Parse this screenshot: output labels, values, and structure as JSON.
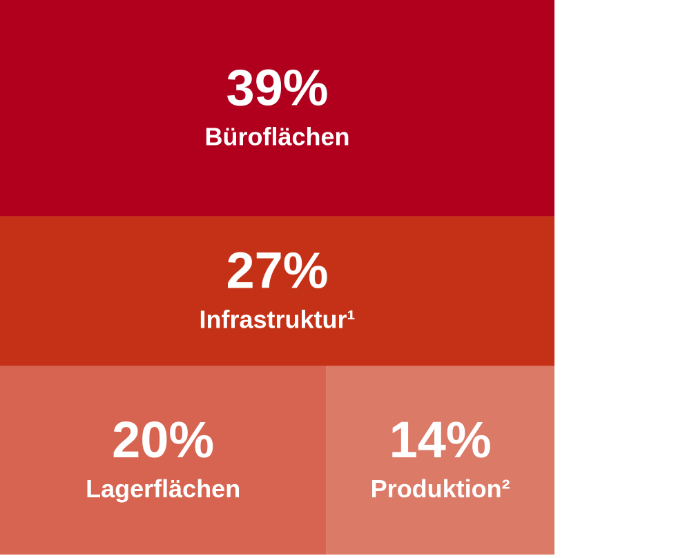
{
  "chart_data": {
    "type": "treemap",
    "categories": [
      "Büroflächen",
      "Infrastruktur¹",
      "Lagerflächen",
      "Produktion²"
    ],
    "values": [
      39,
      27,
      20,
      14
    ],
    "value_labels": [
      "39%",
      "27%",
      "20%",
      "14%"
    ],
    "colors": [
      "#b0001e",
      "#c53117",
      "#d66450",
      "#dc7a68"
    ]
  }
}
